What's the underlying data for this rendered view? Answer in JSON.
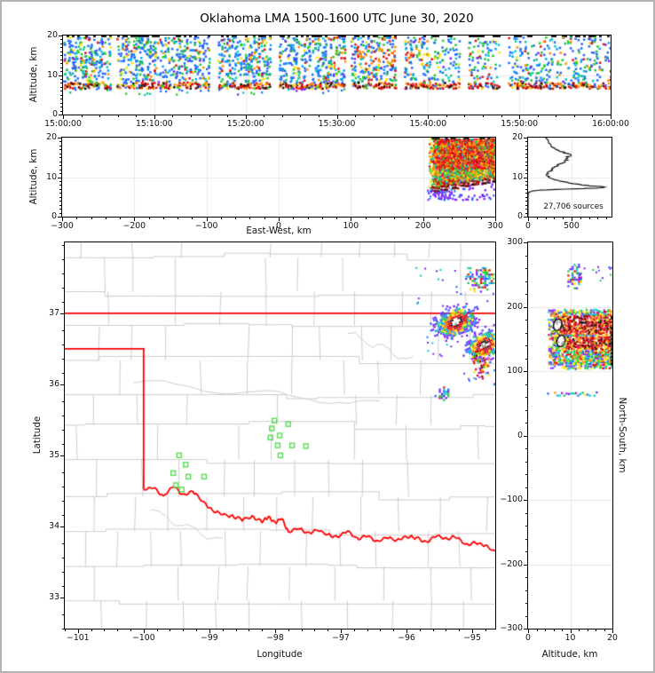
{
  "figure": {
    "title": "Oklahoma LMA 1500-1600 UTC June 30, 2020",
    "background": "#ffffff",
    "frame_color": "#b3b3b3"
  },
  "palette": {
    "station_green": "#55dd55",
    "state_border_red": "#ff0000",
    "county_gray": "#cccccc",
    "gridline": "#e8e8e8",
    "histogram_line": "#111111",
    "density_scale": [
      "#7d1eff",
      "#2268ff",
      "#00a0ff",
      "#00c8c8",
      "#22c832",
      "#ffe000",
      "#ff8c00",
      "#e01010",
      "#8f0000",
      "#141414",
      "#ffffff"
    ]
  },
  "panels": {
    "time_height": {
      "ylabel": "Altitude, km",
      "y_range": [
        0,
        20
      ],
      "y_ticks": [
        0,
        10,
        20
      ],
      "y_tick_labels": [
        "0",
        "10",
        "20"
      ],
      "x_range_minutes": [
        0,
        60
      ],
      "x_ticks_minutes": [
        0,
        10,
        20,
        30,
        40,
        50,
        60
      ],
      "x_tick_labels": [
        "15:00:00",
        "15:10:00",
        "15:20:00",
        "15:30:00",
        "15:40:00",
        "15:50:00",
        "16:00:00"
      ]
    },
    "east_west": {
      "ylabel": "Altitude, km",
      "xlabel": "East-West, km",
      "y_range": [
        0,
        20
      ],
      "y_ticks": [
        0,
        10,
        20
      ],
      "y_tick_labels": [
        "0",
        "10",
        "20"
      ],
      "x_range": [
        -300,
        300
      ],
      "x_ticks": [
        -300,
        -200,
        -100,
        0,
        100,
        200,
        300
      ],
      "x_tick_labels": [
        "−300",
        "−200",
        "−100",
        "0",
        "100",
        "200",
        "300"
      ]
    },
    "histogram": {
      "annotation": "27,706 sources",
      "y_range": [
        0,
        20
      ],
      "y_ticks": [
        0,
        10,
        20
      ],
      "y_tick_labels": [
        "0",
        "10",
        "20"
      ],
      "x_range": [
        0,
        960
      ],
      "x_ticks": [
        0,
        500
      ],
      "x_tick_labels": [
        "0",
        "500"
      ]
    },
    "map": {
      "xlabel": "Longitude",
      "ylabel": "Latitude",
      "x_range": [
        -101.2,
        -94.65
      ],
      "x_ticks": [
        -101,
        -100,
        -99,
        -98,
        -97,
        -96,
        -95
      ],
      "x_tick_labels": [
        "−101",
        "−100",
        "−99",
        "−98",
        "−97",
        "−96",
        "−95"
      ],
      "y_range": [
        32.56,
        38.0
      ],
      "y_ticks": [
        33,
        34,
        35,
        36,
        37
      ],
      "y_tick_labels": [
        "33",
        "34",
        "35",
        "36",
        "37"
      ]
    },
    "north_south": {
      "xlabel": "Altitude, km",
      "ylabel_right": "North-South, km",
      "x_range": [
        0,
        20
      ],
      "x_ticks": [
        0,
        10,
        20
      ],
      "x_tick_labels": [
        "0",
        "10",
        "20"
      ],
      "y_range": [
        -300,
        300
      ],
      "y_ticks": [
        300,
        200,
        100,
        0,
        -100,
        -200,
        -300
      ],
      "y_tick_labels": [
        "300",
        "200",
        "100",
        "0",
        "−100",
        "−200",
        "−300"
      ]
    }
  },
  "chart_data": [
    {
      "id": "time_height",
      "type": "scatter-density",
      "x_axis": "time UTC 15:00:00 to 16:00:00",
      "y_axis_km": [
        0,
        20
      ],
      "clipped_top_km": 20,
      "dense_band_km": [
        6.8,
        8.3
      ],
      "speckle_km": [
        8.3,
        19.8
      ],
      "sparse_low_km": [
        5.2,
        6.8
      ],
      "sparse_low_ends_minute": 31,
      "warm_patch": {
        "minutes": [
          30,
          40
        ],
        "alt_km": [
          12.5,
          17
        ]
      },
      "gap_minutes": [
        5.5,
        16.4,
        23.1,
        31.2,
        36.9,
        43.8,
        48.2
      ],
      "thins_after_minute": 40
    },
    {
      "id": "east_west",
      "type": "scatter-density",
      "block_ew_km": [
        208,
        300
      ],
      "block_alt_km": [
        4.6,
        20
      ],
      "red_core_alt_km": [
        12.5,
        20
      ],
      "lens_arc": {
        "from_ew_alt": [
          210,
          6.7
        ],
        "to_ew_alt": [
          300,
          9.4
        ],
        "thickness_km": 0.5
      },
      "purple_fringe_alt_km": [
        4.5,
        7
      ]
    },
    {
      "id": "histogram",
      "type": "line",
      "annotation": "27,706 sources",
      "profile_alt_km_vs_count": [
        [
          20,
          200
        ],
        [
          19,
          235
        ],
        [
          18,
          265
        ],
        [
          17,
          320
        ],
        [
          16.5,
          370
        ],
        [
          16,
          450
        ],
        [
          15.5,
          495
        ],
        [
          15,
          460
        ],
        [
          14.5,
          440
        ],
        [
          14,
          425
        ],
        [
          13.5,
          390
        ],
        [
          13,
          345
        ],
        [
          12.5,
          305
        ],
        [
          12,
          280
        ],
        [
          11.5,
          250
        ],
        [
          11,
          228
        ],
        [
          10.5,
          210
        ],
        [
          10,
          235
        ],
        [
          9.5,
          290
        ],
        [
          9,
          360
        ],
        [
          8.5,
          470
        ],
        [
          8,
          620
        ],
        [
          7.7,
          800
        ],
        [
          7.5,
          875
        ],
        [
          7.3,
          840
        ],
        [
          7.1,
          640
        ],
        [
          6.9,
          330
        ],
        [
          6.7,
          140
        ],
        [
          6.5,
          50
        ],
        [
          6.2,
          12
        ],
        [
          6.0,
          4
        ],
        [
          5.5,
          0
        ],
        [
          0,
          0
        ]
      ]
    },
    {
      "id": "map",
      "type": "map-scatter",
      "stations_lon_lat": [
        [
          -99.46,
          35.0
        ],
        [
          -99.36,
          34.87
        ],
        [
          -99.55,
          34.75
        ],
        [
          -99.32,
          34.7
        ],
        [
          -99.08,
          34.7
        ],
        [
          -99.51,
          34.58
        ],
        [
          -99.42,
          34.52
        ],
        [
          -98.01,
          35.49
        ],
        [
          -98.05,
          35.38
        ],
        [
          -97.8,
          35.44
        ],
        [
          -98.07,
          35.25
        ],
        [
          -97.93,
          35.28
        ],
        [
          -97.96,
          35.14
        ],
        [
          -97.74,
          35.14
        ],
        [
          -97.53,
          35.13
        ],
        [
          -97.92,
          35.0
        ]
      ],
      "state_border": {
        "north_lat_37": [
          [
            -101.2,
            37.0
          ],
          [
            -94.65,
            37.0
          ]
        ],
        "panhandle": [
          [
            -101.2,
            36.5
          ],
          [
            -100.0,
            36.5
          ],
          [
            -100.0,
            34.52
          ]
        ],
        "red_river": [
          [
            -100.0,
            34.52
          ],
          [
            -99.85,
            34.55
          ],
          [
            -99.7,
            34.42
          ],
          [
            -99.55,
            34.57
          ],
          [
            -99.4,
            34.44
          ],
          [
            -99.25,
            34.5
          ],
          [
            -99.1,
            34.35
          ],
          [
            -98.95,
            34.22
          ],
          [
            -98.8,
            34.17
          ],
          [
            -98.65,
            34.14
          ],
          [
            -98.5,
            34.1
          ],
          [
            -98.35,
            34.13
          ],
          [
            -98.2,
            34.07
          ],
          [
            -98.1,
            34.13
          ],
          [
            -98.0,
            34.05
          ],
          [
            -97.9,
            34.12
          ],
          [
            -97.8,
            33.92
          ],
          [
            -97.65,
            33.98
          ],
          [
            -97.5,
            33.9
          ],
          [
            -97.35,
            33.95
          ],
          [
            -97.2,
            33.88
          ],
          [
            -97.05,
            33.85
          ],
          [
            -96.9,
            33.94
          ],
          [
            -96.75,
            33.82
          ],
          [
            -96.6,
            33.87
          ],
          [
            -96.45,
            33.78
          ],
          [
            -96.3,
            33.85
          ],
          [
            -96.15,
            33.8
          ],
          [
            -96.0,
            33.86
          ],
          [
            -95.85,
            33.84
          ],
          [
            -95.7,
            33.77
          ],
          [
            -95.55,
            33.87
          ],
          [
            -95.4,
            33.82
          ],
          [
            -95.25,
            33.86
          ],
          [
            -95.1,
            33.74
          ],
          [
            -94.95,
            33.77
          ],
          [
            -94.8,
            33.73
          ],
          [
            -94.65,
            33.64
          ]
        ]
      },
      "rivers_gray": [
        [
          [
            -100.15,
            36.02
          ],
          [
            -96.4,
            35.72
          ]
        ],
        [
          [
            -96.9,
            36.72
          ],
          [
            -95.9,
            36.33
          ]
        ],
        [
          [
            -99.9,
            34.22
          ],
          [
            -98.8,
            33.78
          ]
        ]
      ],
      "county_grid_seed": 11,
      "source_clusters": [
        {
          "lon": -95.26,
          "lat": 36.89,
          "rx_deg": 0.32,
          "ry_deg": 0.19,
          "rot_deg": -20,
          "style": "core"
        },
        {
          "lon": -94.83,
          "lat": 36.56,
          "rx_deg": 0.27,
          "ry_deg": 0.175,
          "rot_deg": -25,
          "style": "core"
        },
        {
          "lon": -94.89,
          "lat": 36.31,
          "rx_deg": 0.12,
          "ry_deg": 0.19,
          "rot_deg": -15,
          "style": "warm"
        },
        {
          "lon": -94.87,
          "lat": 37.49,
          "rx_deg": 0.19,
          "ry_deg": 0.16,
          "rot_deg": 0,
          "style": "mixed"
        },
        {
          "lon": -95.47,
          "lat": 35.875,
          "rx_deg": 0.12,
          "ry_deg": 0.075,
          "rot_deg": 0,
          "style": "mixed"
        }
      ],
      "outlier_boxes": [
        {
          "lon": -95.91,
          "lat_top": 37.72,
          "w_deg": 1.26,
          "h_deg": 0.63,
          "n": 22
        },
        {
          "lon": -95.7,
          "lat_top": 36.69,
          "w_deg": 0.54,
          "h_deg": 0.28,
          "n": 12
        },
        {
          "lon": -95.16,
          "lat_top": 36.22,
          "w_deg": 0.51,
          "h_deg": 0.25,
          "n": 10
        }
      ]
    },
    {
      "id": "north_south",
      "type": "scatter-density",
      "main_block": {
        "ns_km": [
          106,
          198
        ],
        "alt_km": [
          4.8,
          20
        ]
      },
      "dark_bands_ns_km": [
        [
          158,
          187
        ],
        [
          135,
          156
        ]
      ],
      "white_cores": [
        {
          "alt_km": 7.0,
          "ns_km": 172
        },
        {
          "alt_km": 7.8,
          "ns_km": 147
        }
      ],
      "top_blob": {
        "ns_km": [
          230,
          268
        ],
        "alt_km": [
          9,
          13
        ]
      },
      "scatter_line": {
        "ns_km": 66,
        "alt_km": [
          4.5,
          16.5
        ]
      }
    }
  ]
}
